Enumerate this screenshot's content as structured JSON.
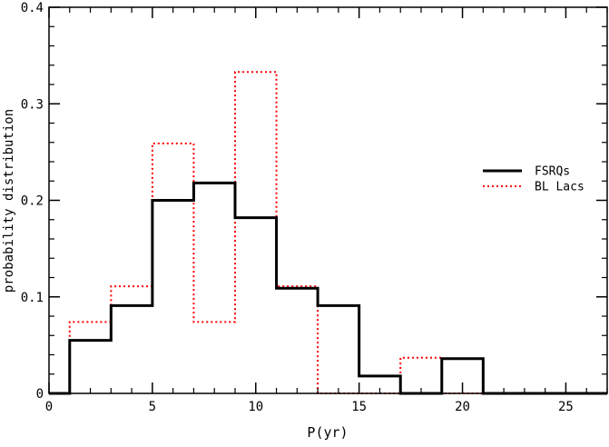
{
  "chart_data": {
    "type": "line",
    "style": "step-histogram",
    "xlabel": "P(yr)",
    "ylabel": "probability distribution",
    "xlim": [
      0,
      27
    ],
    "ylim": [
      0,
      0.4
    ],
    "x_ticks": [
      0,
      5,
      10,
      15,
      20,
      25
    ],
    "y_ticks": [
      0,
      0.1,
      0.2,
      0.3,
      0.4
    ],
    "x_tick_labels": [
      "0",
      "5",
      "10",
      "15",
      "20",
      "25"
    ],
    "y_tick_labels": [
      "0",
      "0.1",
      "0.2",
      "0.3",
      "0.4"
    ],
    "legend_position": "right-middle",
    "bin_edges": [
      1,
      3,
      5,
      7,
      9,
      11,
      13,
      15,
      17,
      19,
      21
    ],
    "series": [
      {
        "name": "FSRQs",
        "color": "#000000",
        "dash": "solid",
        "values": [
          0.055,
          0.091,
          0.2,
          0.218,
          0.182,
          0.109,
          0.091,
          0.018,
          0.0,
          0.036
        ]
      },
      {
        "name": "BL Lacs",
        "color": "#ff0000",
        "dash": "dotted",
        "values": [
          0.074,
          0.111,
          0.259,
          0.074,
          0.333,
          0.111,
          0.0,
          0.0,
          0.037,
          0.0
        ]
      }
    ]
  }
}
